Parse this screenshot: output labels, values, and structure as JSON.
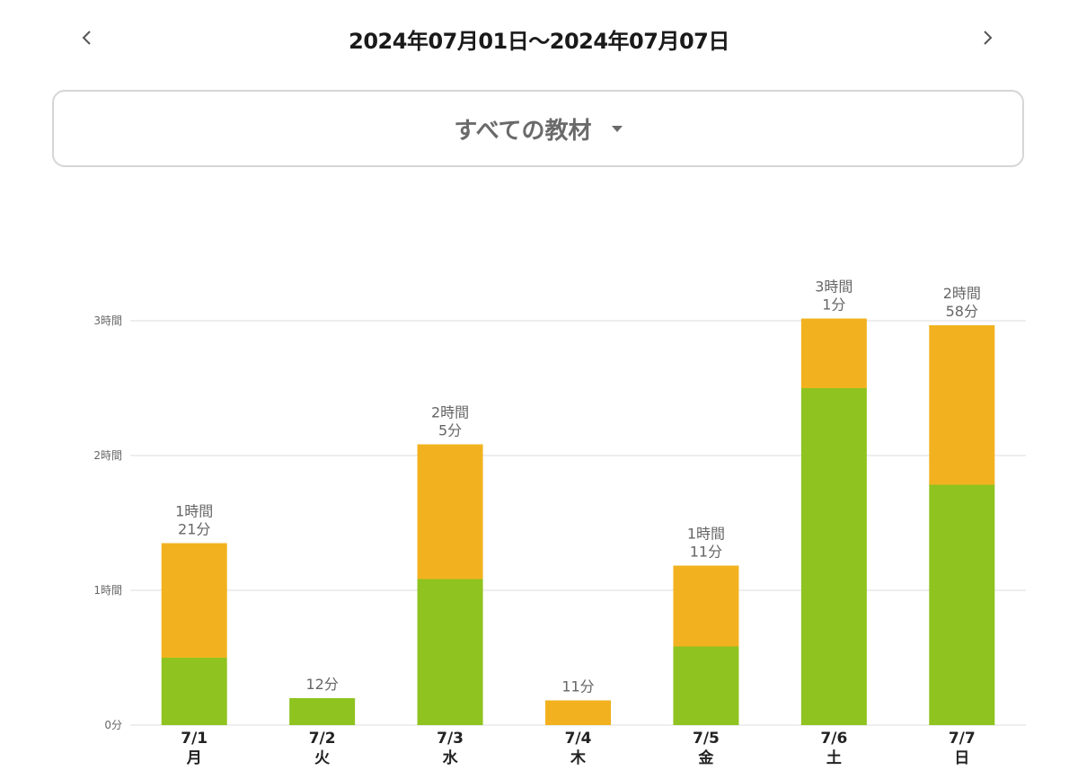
{
  "header": {
    "date_range": "2024年07月01日〜2024年07月07日",
    "prev_icon": "chevron-left-icon",
    "next_icon": "chevron-right-icon"
  },
  "filter": {
    "selected": "すべての教材",
    "caret_icon": "caret-down-icon"
  },
  "colors": {
    "series_a": "#8fc31f",
    "series_b": "#f2b21f",
    "grid": "#dddddd",
    "text": "#666666"
  },
  "chart_data": {
    "type": "bar",
    "stacked": true,
    "categories": [
      "7/1",
      "7/2",
      "7/3",
      "7/4",
      "7/5",
      "7/6",
      "7/7"
    ],
    "weekdays": [
      "月",
      "火",
      "水",
      "木",
      "金",
      "土",
      "日"
    ],
    "series": [
      {
        "color": "#8fc31f",
        "values": [
          30,
          12,
          65,
          0,
          35,
          150,
          107
        ]
      },
      {
        "color": "#f2b21f",
        "values": [
          51,
          0,
          60,
          11,
          36,
          31,
          71
        ]
      }
    ],
    "totals_label": [
      [
        "1時間",
        "21分"
      ],
      [
        "12分"
      ],
      [
        "2時間",
        "5分"
      ],
      [
        "11分"
      ],
      [
        "1時間",
        "11分"
      ],
      [
        "3時間",
        "1分"
      ],
      [
        "2時間",
        "58分"
      ]
    ],
    "yticks": [
      {
        "value": 0,
        "label": "0分"
      },
      {
        "value": 60,
        "label": "1時間"
      },
      {
        "value": 120,
        "label": "2時間"
      },
      {
        "value": 180,
        "label": "3時間"
      }
    ],
    "ylim": [
      0,
      180
    ],
    "grid": true
  }
}
